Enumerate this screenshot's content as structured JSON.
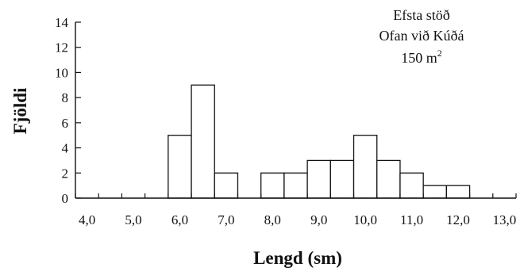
{
  "chart_data": {
    "type": "bar",
    "title": "",
    "xlabel": "Lengd (sm)",
    "ylabel": "Fjöldi",
    "ylim": [
      0,
      14
    ],
    "xlim": [
      3.75,
      13.25
    ],
    "yticks": [
      0,
      2,
      4,
      6,
      8,
      10,
      12,
      14
    ],
    "xtick_labels": [
      "4,0",
      "5,0",
      "6,0",
      "7,0",
      "8,0",
      "9,0",
      "10,0",
      "11,0",
      "12,0",
      "13,0"
    ],
    "xtick_values": [
      4,
      5,
      6,
      7,
      8,
      9,
      10,
      11,
      12,
      13
    ],
    "bin_width": 0.5,
    "bins": [
      {
        "start": 3.75,
        "value": 0
      },
      {
        "start": 4.25,
        "value": 0
      },
      {
        "start": 4.75,
        "value": 0
      },
      {
        "start": 5.25,
        "value": 0
      },
      {
        "start": 5.75,
        "value": 5
      },
      {
        "start": 6.25,
        "value": 9
      },
      {
        "start": 6.75,
        "value": 2
      },
      {
        "start": 7.25,
        "value": 0
      },
      {
        "start": 7.75,
        "value": 2
      },
      {
        "start": 8.25,
        "value": 2
      },
      {
        "start": 8.75,
        "value": 3
      },
      {
        "start": 9.25,
        "value": 3
      },
      {
        "start": 9.75,
        "value": 5
      },
      {
        "start": 10.25,
        "value": 3
      },
      {
        "start": 10.75,
        "value": 2
      },
      {
        "start": 11.25,
        "value": 1
      },
      {
        "start": 11.75,
        "value": 1
      },
      {
        "start": 12.25,
        "value": 0
      },
      {
        "start": 12.75,
        "value": 0
      }
    ],
    "annotation": {
      "line1": "Efsta stöð",
      "line2": "Ofan við Kúðá",
      "line3": "150 m",
      "line3_sup": "2"
    },
    "grid": false
  }
}
